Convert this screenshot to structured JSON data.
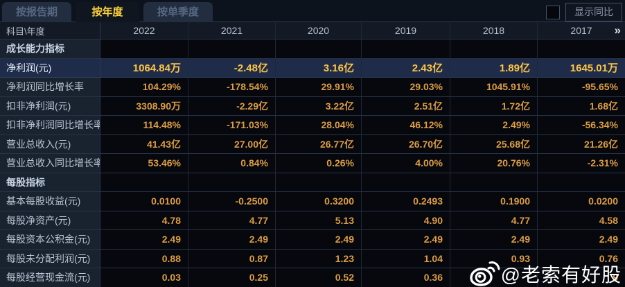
{
  "tabs": [
    {
      "id": "report-period",
      "label": "按报告期",
      "active": false
    },
    {
      "id": "annual",
      "label": "按年度",
      "active": true
    },
    {
      "id": "quarter",
      "label": "按单季度",
      "active": false
    }
  ],
  "controls": {
    "show_yoy_label": "显示同比",
    "checkbox_checked": false
  },
  "table": {
    "corner_label": "科目\\年度",
    "years": [
      "2022",
      "2021",
      "2020",
      "2019",
      "2018",
      "2017"
    ],
    "more_icon": "»",
    "rows": [
      {
        "label": "成长能力指标",
        "type": "section",
        "highlighted": false,
        "values": [
          "",
          "",
          "",
          "",
          "",
          ""
        ]
      },
      {
        "label": "净利润(元)",
        "type": "data",
        "highlighted": true,
        "values": [
          "1064.84万",
          "-2.48亿",
          "3.16亿",
          "2.43亿",
          "1.89亿",
          "1645.01万"
        ]
      },
      {
        "label": "净利润同比增长率",
        "type": "data",
        "highlighted": false,
        "values": [
          "104.29%",
          "-178.54%",
          "29.91%",
          "29.03%",
          "1045.91%",
          "-95.65%"
        ]
      },
      {
        "label": "扣非净利润(元)",
        "type": "data",
        "highlighted": false,
        "values": [
          "3308.90万",
          "-2.29亿",
          "3.22亿",
          "2.51亿",
          "1.72亿",
          "1.68亿"
        ]
      },
      {
        "label": "扣非净利润同比增长率",
        "type": "data",
        "highlighted": false,
        "values": [
          "114.48%",
          "-171.03%",
          "28.04%",
          "46.12%",
          "2.49%",
          "-56.34%"
        ]
      },
      {
        "label": "营业总收入(元)",
        "type": "data",
        "highlighted": false,
        "values": [
          "41.43亿",
          "27.00亿",
          "26.77亿",
          "26.70亿",
          "25.68亿",
          "21.26亿"
        ]
      },
      {
        "label": "营业总收入同比增长率",
        "type": "data",
        "highlighted": false,
        "values": [
          "53.46%",
          "0.84%",
          "0.26%",
          "4.00%",
          "20.76%",
          "-2.31%"
        ]
      },
      {
        "label": "每股指标",
        "type": "section",
        "highlighted": false,
        "values": [
          "",
          "",
          "",
          "",
          "",
          ""
        ]
      },
      {
        "label": "基本每股收益(元)",
        "type": "data",
        "highlighted": false,
        "values": [
          "0.0100",
          "-0.2500",
          "0.3200",
          "0.2493",
          "0.1900",
          "0.0200"
        ]
      },
      {
        "label": "每股净资产(元)",
        "type": "data",
        "highlighted": false,
        "values": [
          "4.78",
          "4.77",
          "5.13",
          "4.90",
          "4.77",
          "4.58"
        ]
      },
      {
        "label": "每股资本公积金(元)",
        "type": "data",
        "highlighted": false,
        "values": [
          "2.49",
          "2.49",
          "2.49",
          "2.49",
          "2.49",
          "2.49"
        ]
      },
      {
        "label": "每股未分配利润(元)",
        "type": "data",
        "highlighted": false,
        "values": [
          "0.88",
          "0.87",
          "1.23",
          "1.04",
          "0.93",
          "0.76"
        ]
      },
      {
        "label": "每股经营现金流(元)",
        "type": "data",
        "highlighted": false,
        "values": [
          "0.03",
          "0.25",
          "0.52",
          "0.36",
          "",
          "9"
        ]
      }
    ]
  },
  "watermark": {
    "handle": "@老索有好股"
  },
  "colors": {
    "tab_active_text": "#ffd43c",
    "value_orange": "#dd9d44",
    "highlight_value_gold": "#ffc544",
    "highlight_row_bg": "#1e2c4a",
    "label_col_bg": "#19222f",
    "grid_line": "#273349"
  }
}
